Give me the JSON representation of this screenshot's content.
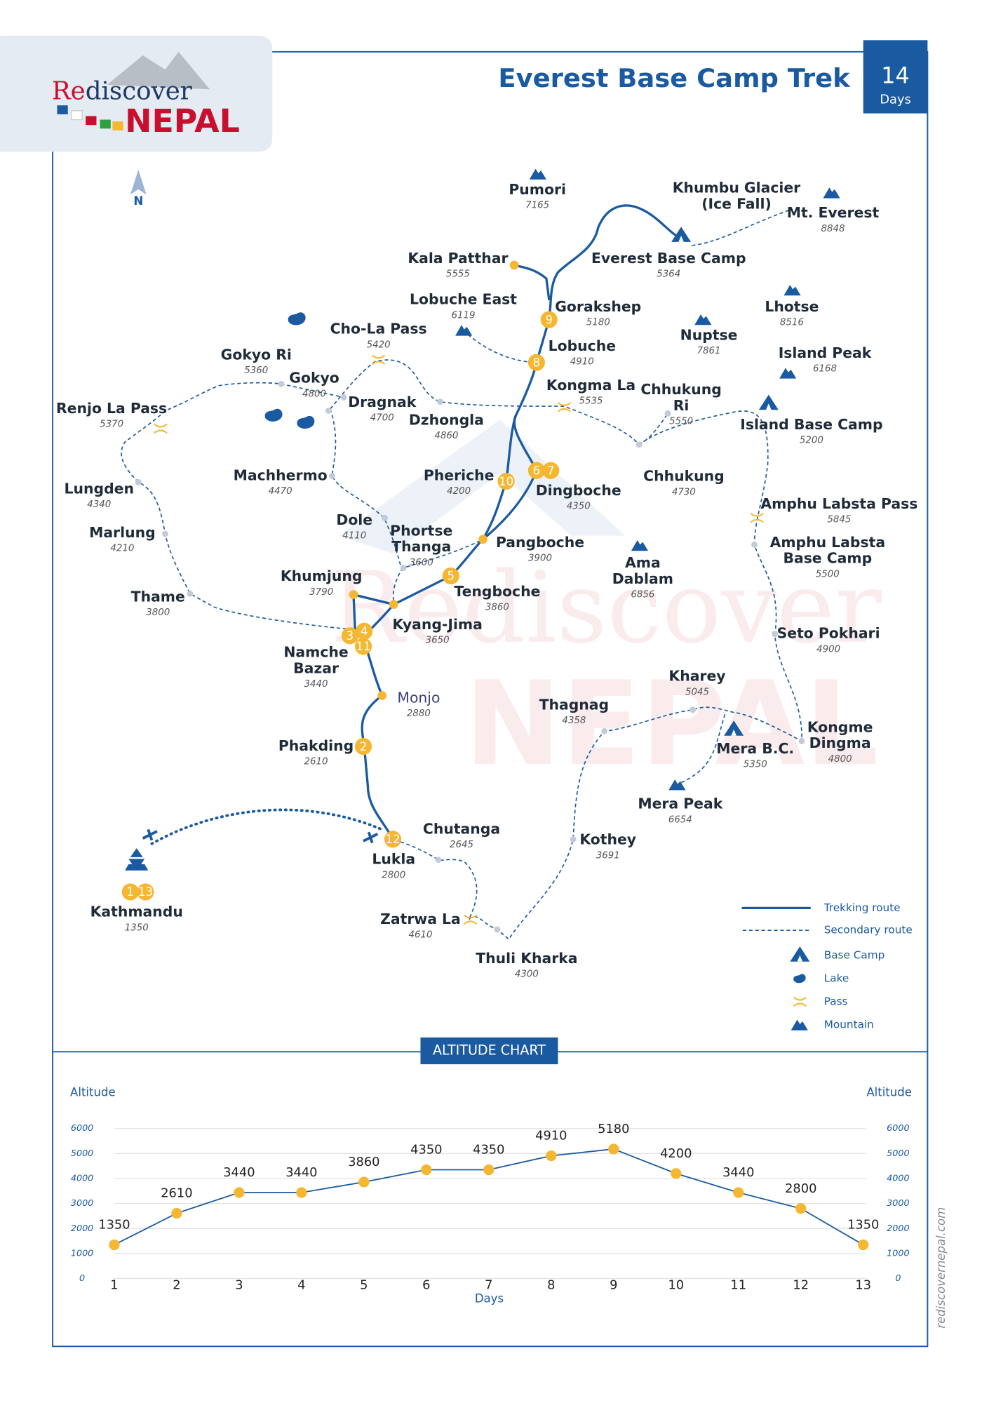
{
  "header": {
    "logo": [
      "Re",
      "discover",
      "NEPAL"
    ],
    "title": "Everest Base Camp Trek",
    "days_number": "14",
    "days_label": "Days"
  },
  "map": {
    "north": "N",
    "places": [
      {
        "name": "Pumori",
        "altitude": 7165
      },
      {
        "lines": [
          "Khumbu Glacier",
          "(Ice Fall)"
        ]
      },
      {
        "name": "Mt. Everest",
        "altitude": 8848
      },
      {
        "name": "Kala Patthar",
        "altitude": 5555
      },
      {
        "name": "Everest Base Camp",
        "altitude": 5364
      },
      {
        "name": "Lobuche East",
        "altitude": 6119
      },
      {
        "name": "Gorakshep",
        "altitude": 5180
      },
      {
        "name": "Lhotse",
        "altitude": 8516
      },
      {
        "name": "Nuptse",
        "altitude": 7861
      },
      {
        "name": "Cho-La Pass",
        "altitude": 5420
      },
      {
        "name": "Lobuche",
        "altitude": 4910
      },
      {
        "name": "Island Peak",
        "altitude": 6168
      },
      {
        "name": "Gokyo Ri",
        "altitude": 5360
      },
      {
        "name": "Gokyo",
        "altitude": 4800
      },
      {
        "name": "Kongma La",
        "altitude": 5535
      },
      {
        "lines": [
          "Chhukung",
          "Ri"
        ],
        "altitude": 5550
      },
      {
        "name": "Dragnak",
        "altitude": 4700
      },
      {
        "name": "Renjo La Pass",
        "altitude": 5370
      },
      {
        "name": "Dzhongla",
        "altitude": 4860
      },
      {
        "name": "Island Base Camp",
        "altitude": 5200
      },
      {
        "name": "Machhermo",
        "altitude": 4470
      },
      {
        "name": "Pheriche",
        "altitude": 4200
      },
      {
        "name": "Chhukung",
        "altitude": 4730
      },
      {
        "name": "Lungden",
        "altitude": 4340
      },
      {
        "name": "Dingboche",
        "altitude": 4350
      },
      {
        "name": "Amphu Labsta Pass",
        "altitude": 5845
      },
      {
        "name": "Dole",
        "altitude": 4110
      },
      {
        "name": "Marlung",
        "altitude": 4210
      },
      {
        "lines": [
          "Phortse",
          "Thanga"
        ],
        "altitude": 3600
      },
      {
        "name": "Pangboche",
        "altitude": 3900
      },
      {
        "lines": [
          "Amphu Labsta",
          "Base Camp"
        ],
        "altitude": 5500
      },
      {
        "lines": [
          "Ama",
          "Dablam"
        ],
        "altitude": 6856
      },
      {
        "name": "Khumjung",
        "altitude": 3790
      },
      {
        "name": "Tengboche",
        "altitude": 3860
      },
      {
        "name": "Thame",
        "altitude": 3800
      },
      {
        "name": "Kyang-Jima",
        "altitude": 3650
      },
      {
        "name": "Seto Pokhari",
        "altitude": 4900
      },
      {
        "lines": [
          "Namche",
          "Bazar"
        ],
        "altitude": 3440
      },
      {
        "name": "Kharey",
        "altitude": 5045
      },
      {
        "name": "Monjo",
        "altitude": 2880
      },
      {
        "name": "Thagnag",
        "altitude": 4358
      },
      {
        "lines": [
          "Kongme",
          "Dingma"
        ],
        "altitude": 4800
      },
      {
        "name": "Phakding",
        "altitude": 2610
      },
      {
        "name": "Mera B.C.",
        "altitude": 5350
      },
      {
        "name": "Mera Peak",
        "altitude": 6654
      },
      {
        "name": "Chutanga",
        "altitude": 2645
      },
      {
        "name": "Kothey",
        "altitude": 3691
      },
      {
        "name": "Lukla",
        "altitude": 2800
      },
      {
        "name": "Kathmandu",
        "altitude": 1350
      },
      {
        "name": "Zatrwa La",
        "altitude": 4610
      },
      {
        "name": "Thuli Kharka",
        "altitude": 4300
      }
    ],
    "day_markers": [
      1,
      13,
      2,
      3,
      4,
      11,
      5,
      6,
      7,
      8,
      9,
      10,
      12
    ]
  },
  "legend": [
    "Trekking route",
    "Secondary route",
    "Base Camp",
    "Lake",
    "Pass",
    "Mountain"
  ],
  "side_text": "rediscovernepal.com",
  "chart_header": "ALTITUDE CHART",
  "chart_data": {
    "type": "line",
    "y_label": "Altitude",
    "x_label": "Days",
    "categories": [
      1,
      2,
      3,
      4,
      5,
      6,
      7,
      8,
      9,
      10,
      11,
      12,
      13
    ],
    "values": [
      1350,
      2610,
      3440,
      3440,
      3860,
      4350,
      4350,
      4910,
      5180,
      4200,
      3440,
      2800,
      1350
    ],
    "line_color": "#1a5aa0",
    "marker_color": "#f5b731",
    "ylim": [
      0,
      6000
    ],
    "yticks": [
      0,
      1000,
      2000,
      3000,
      4000,
      5000,
      6000
    ],
    "grid": true
  }
}
